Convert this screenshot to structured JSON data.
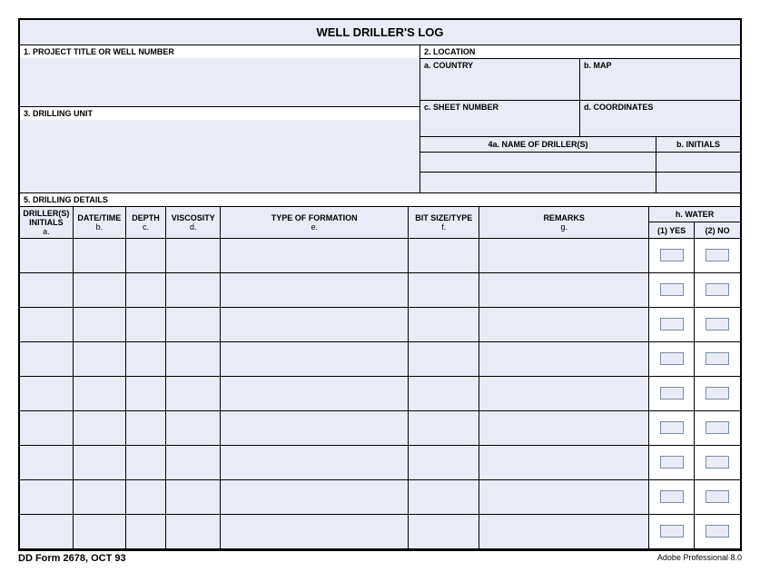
{
  "title": "WELL DRILLER'S LOG",
  "sections": {
    "s1": "1.  PROJECT TITLE OR WELL NUMBER",
    "s2": "2.  LOCATION",
    "s2a": "a.  COUNTRY",
    "s2b": "b.  MAP",
    "s2c": "c.  SHEET NUMBER",
    "s2d": "d.  COORDINATES",
    "s3": "3.  DRILLING UNIT",
    "s4a": "4a. NAME OF DRILLER(S)",
    "s4b": "b.  INITIALS",
    "s5": "5.  DRILLING DETAILS"
  },
  "table": {
    "water_header": "h.  WATER",
    "columns": [
      {
        "line1": "DRILLER(S)",
        "line2": "INITIALS",
        "sub": "a."
      },
      {
        "line1": "",
        "line2": "DATE/TIME",
        "sub": "b."
      },
      {
        "line1": "",
        "line2": "DEPTH",
        "sub": "c."
      },
      {
        "line1": "",
        "line2": "VISCOSITY",
        "sub": "d."
      },
      {
        "line1": "",
        "line2": "TYPE OF FORMATION",
        "sub": "e."
      },
      {
        "line1": "",
        "line2": "BIT SIZE/TYPE",
        "sub": "f."
      },
      {
        "line1": "",
        "line2": "REMARKS",
        "sub": "g."
      }
    ],
    "water_yes": "(1) YES",
    "water_no": "(2) NO",
    "row_count": 9
  },
  "footer": {
    "left": "DD Form 2678, OCT 93",
    "right": "Adobe Professional 8.0"
  },
  "style": {
    "bg": "#e9ecf6",
    "border": "#000000"
  }
}
